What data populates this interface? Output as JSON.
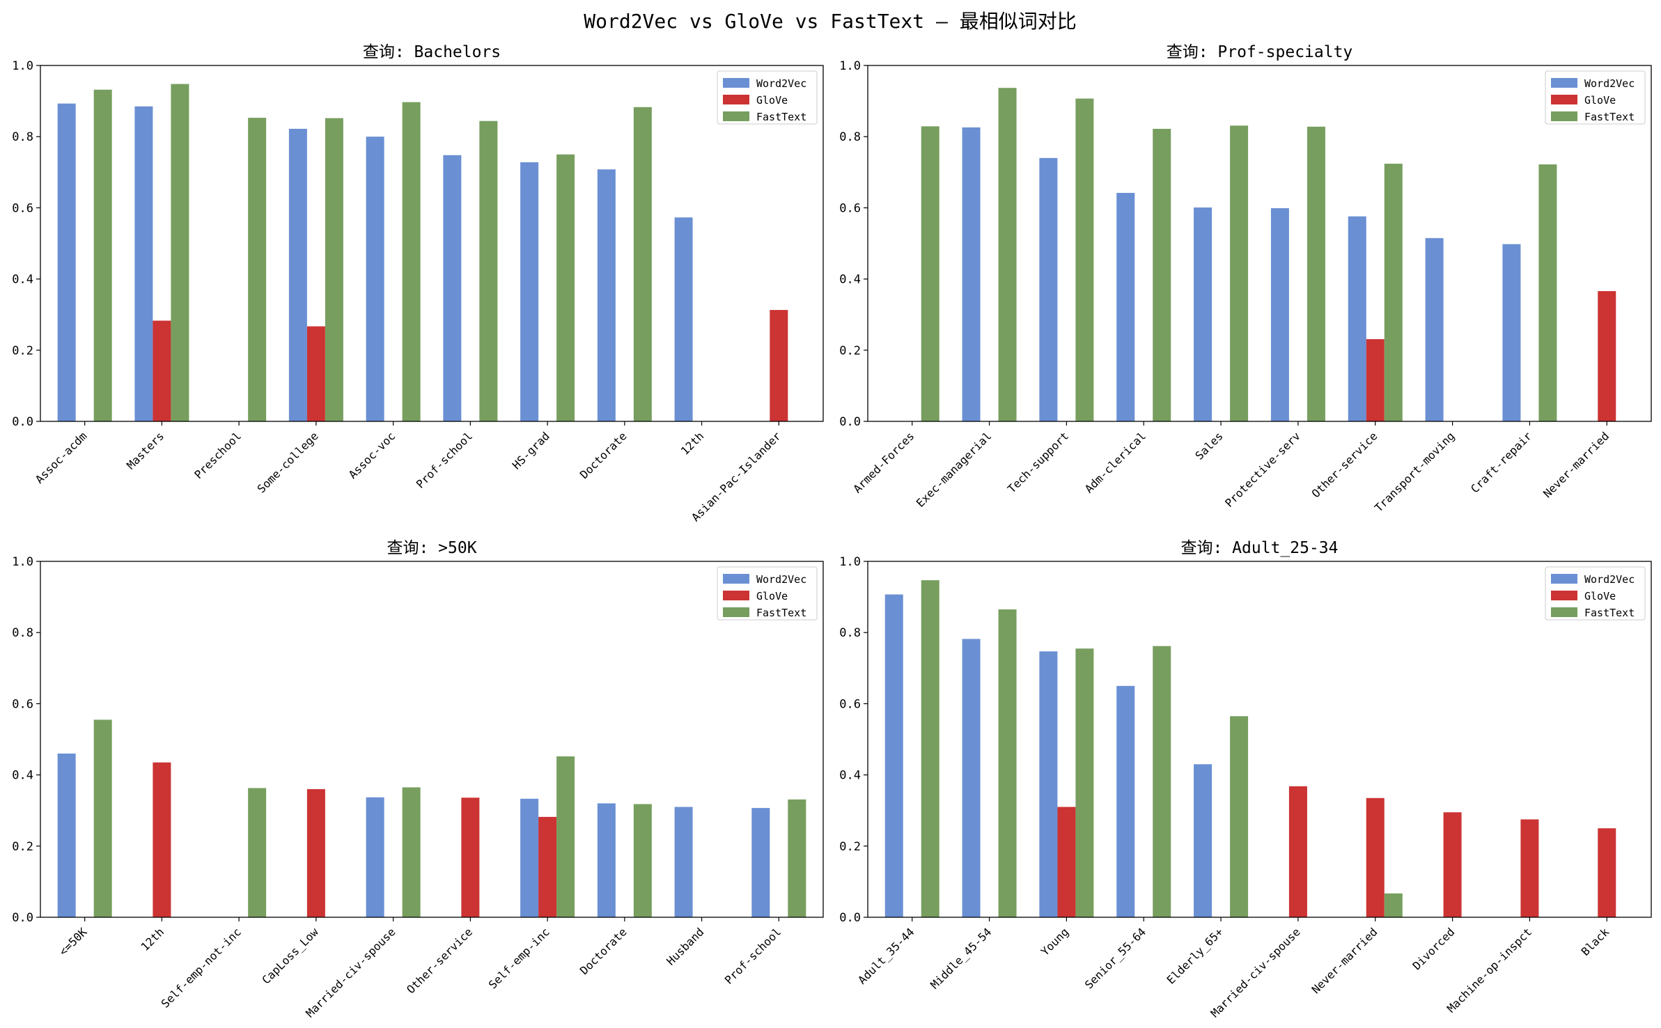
{
  "suptitle": "Word2Vec vs GloVe vs FastText — 最相似词对比",
  "colors": {
    "Word2Vec": "#6A8FD3",
    "GloVe": "#CC3333",
    "FastText": "#779E5E"
  },
  "chart_data": [
    {
      "type": "bar",
      "title": "查询: Bachelors",
      "ylim": [
        0,
        1.0
      ],
      "yticks": [
        "0.0",
        "0.2",
        "0.4",
        "0.6",
        "0.8",
        "1.0"
      ],
      "legend": "top-right",
      "categories": [
        "Assoc-acdm",
        "Masters",
        "Preschool",
        "Some-college",
        "Assoc-voc",
        "Prof-school",
        "HS-grad",
        "Doctorate",
        "12th",
        "Asian-Pac-Islander"
      ],
      "series": [
        {
          "name": "Word2Vec",
          "values": [
            0.893,
            0.885,
            0,
            0.822,
            0.8,
            0.748,
            0.728,
            0.708,
            0.573,
            0
          ]
        },
        {
          "name": "GloVe",
          "values": [
            0,
            0.283,
            0,
            0.267,
            0,
            0,
            0,
            0,
            0,
            0.313
          ]
        },
        {
          "name": "FastText",
          "values": [
            0.932,
            0.948,
            0.853,
            0.852,
            0.897,
            0.844,
            0.75,
            0.883,
            0,
            0
          ]
        }
      ]
    },
    {
      "type": "bar",
      "title": "查询: Prof-specialty",
      "ylim": [
        0,
        1.0
      ],
      "yticks": [
        "0.0",
        "0.2",
        "0.4",
        "0.6",
        "0.8",
        "1.0"
      ],
      "legend": "top-right",
      "categories": [
        "Armed-Forces",
        "Exec-managerial",
        "Tech-support",
        "Adm-clerical",
        "Sales",
        "Protective-serv",
        "Other-service",
        "Transport-moving",
        "Craft-repair",
        "Never-married"
      ],
      "series": [
        {
          "name": "Word2Vec",
          "values": [
            0,
            0.826,
            0.74,
            0.642,
            0.601,
            0.599,
            0.576,
            0.515,
            0.498,
            0
          ]
        },
        {
          "name": "GloVe",
          "values": [
            0,
            0,
            0,
            0,
            0,
            0,
            0.231,
            0,
            0,
            0.366
          ]
        },
        {
          "name": "FastText",
          "values": [
            0.829,
            0.937,
            0.907,
            0.822,
            0.831,
            0.828,
            0.724,
            0,
            0.722,
            0
          ]
        }
      ]
    },
    {
      "type": "bar",
      "title": "查询: >50K",
      "ylim": [
        0,
        1.0
      ],
      "yticks": [
        "0.0",
        "0.2",
        "0.4",
        "0.6",
        "0.8",
        "1.0"
      ],
      "legend": "top-right",
      "categories": [
        "<=50K",
        "12th",
        "Self-emp-not-inc",
        "CapLoss_Low",
        "Married-civ-spouse",
        "Other-service",
        "Self-emp-inc",
        "Doctorate",
        "Husband",
        "Prof-school"
      ],
      "series": [
        {
          "name": "Word2Vec",
          "values": [
            0.46,
            0,
            0,
            0,
            0.337,
            0,
            0.333,
            0.32,
            0.31,
            0.307
          ]
        },
        {
          "name": "GloVe",
          "values": [
            0,
            0.435,
            0,
            0.36,
            0,
            0.336,
            0.282,
            0,
            0,
            0
          ]
        },
        {
          "name": "FastText",
          "values": [
            0.555,
            0,
            0.363,
            0,
            0.365,
            0,
            0.452,
            0.318,
            0,
            0.331
          ]
        }
      ]
    },
    {
      "type": "bar",
      "title": "查询: Adult_25-34",
      "ylim": [
        0,
        1.0
      ],
      "yticks": [
        "0.0",
        "0.2",
        "0.4",
        "0.6",
        "0.8",
        "1.0"
      ],
      "legend": "top-right",
      "categories": [
        "Adult_35-44",
        "Middle_45-54",
        "Young",
        "Senior_55-64",
        "Elderly_65+",
        "Married-civ-spouse",
        "Never-married",
        "Divorced",
        "Machine-op-inspct",
        "Black"
      ],
      "series": [
        {
          "name": "Word2Vec",
          "values": [
            0.907,
            0.782,
            0.747,
            0.65,
            0.43,
            0,
            0,
            0,
            0,
            0
          ]
        },
        {
          "name": "GloVe",
          "values": [
            0,
            0,
            0.31,
            0,
            0,
            0.368,
            0.335,
            0.295,
            0.275,
            0.25
          ]
        },
        {
          "name": "FastText",
          "values": [
            0.947,
            0.865,
            0.755,
            0.762,
            0.565,
            0,
            0.067,
            0,
            0,
            0
          ]
        }
      ]
    }
  ]
}
